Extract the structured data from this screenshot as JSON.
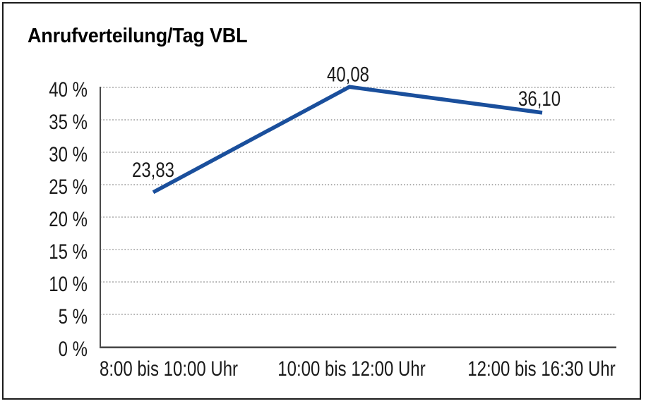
{
  "window": {
    "title": "Anrufverteilung/Tag VBL"
  },
  "chart_data": {
    "type": "line",
    "title": "Anrufverteilung/Tag VBL",
    "categories": [
      "8:00 bis 10:00 Uhr",
      "10:00 bis 12:00 Uhr",
      "12:00 bis 16:30 Uhr"
    ],
    "values": [
      23.83,
      40.08,
      36.1
    ],
    "point_labels": [
      "23,83",
      "40,08",
      "36,10"
    ],
    "xlabel": "",
    "ylabel": "",
    "ylim": [
      0,
      40
    ],
    "y_ticks": [
      0,
      5,
      10,
      15,
      20,
      25,
      30,
      35,
      40
    ],
    "y_tick_suffix": " %",
    "grid": "horizontal-dotted",
    "legend": "none",
    "series_name": "Anrufverteilung/Tag VBL"
  },
  "colors": {
    "accent": "#1a4f9c",
    "text": "#1a1a1a",
    "grid": "#7d7d7d",
    "axis": "#4a4a4a",
    "frame": "#1a1a1a",
    "background": "#ffffff"
  }
}
